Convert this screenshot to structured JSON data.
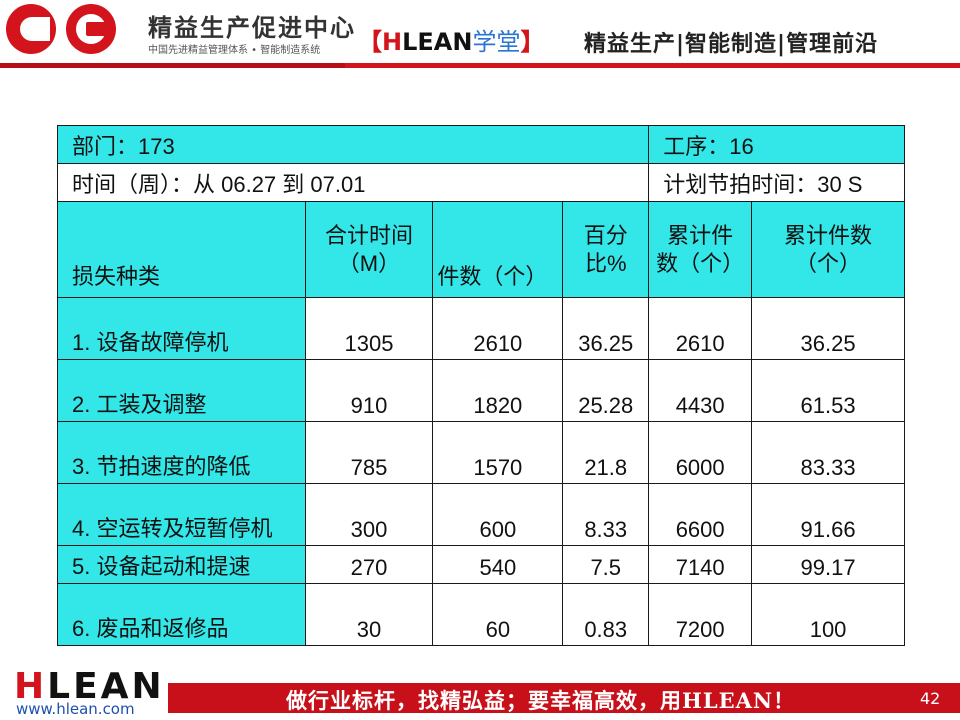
{
  "header": {
    "brand_title": "精益生产促进中心",
    "brand_subtitle": "中国先进精益管理体系 • 智能制造系统",
    "academy_bracket_open": "【",
    "academy_h": "H",
    "academy_lean": "LEAN",
    "academy_xt": "学堂",
    "academy_bracket_close": "】",
    "tagline": "精益生产|智能制造|管理前沿"
  },
  "watermark": "www.hlean.com",
  "table": {
    "info": {
      "department": "部门：173",
      "process": "工序：16",
      "period": "时间（周）：从  06.27    到    07.01",
      "takt": "计划节拍时间：30 S"
    },
    "headers": {
      "loss_type": "损失种类",
      "total_time_line1": "合计时间",
      "total_time_line2": "（M）",
      "pieces": "件数（个）",
      "percent_line1": "百分",
      "percent_line2": "比%",
      "cum_pieces_line1": "累计件",
      "cum_pieces_line2": "数（个）",
      "cum_count_line1": "累计件数",
      "cum_count_line2": "（个）"
    },
    "rows": [
      {
        "label": "1. 设备故障停机",
        "time": "1305",
        "pieces": "2610",
        "percent": "36.25",
        "cum_pieces": "2610",
        "cum_count": "36.25"
      },
      {
        "label": "2. 工装及调整",
        "time": "910",
        "pieces": "1820",
        "percent": "25.28",
        "cum_pieces": "4430",
        "cum_count": "61.53"
      },
      {
        "label": "3. 节拍速度的降低",
        "time": "785",
        "pieces": "1570",
        "percent": "21.8",
        "cum_pieces": "6000",
        "cum_count": "83.33"
      },
      {
        "label": "4. 空运转及短暂停机",
        "time": "300",
        "pieces": "600",
        "percent": "8.33",
        "cum_pieces": "6600",
        "cum_count": "91.66"
      },
      {
        "label": "5. 设备起动和提速",
        "time": "270",
        "pieces": "540",
        "percent": "7.5",
        "cum_pieces": "7140",
        "cum_count": "99.17"
      },
      {
        "label": "6. 废品和返修品",
        "time": "30",
        "pieces": "60",
        "percent": "0.83",
        "cum_pieces": "7200",
        "cum_count": "100"
      }
    ]
  },
  "footer": {
    "logo_h": "H",
    "logo_rest": "LEAN",
    "url": "www.hlean.com",
    "slogan": "做行业标杆，找精弘益；要幸福高效，用HLEAN！",
    "page_number": "42"
  },
  "colors": {
    "accent_red": "#d4141c",
    "table_cyan": "#33e6e8"
  }
}
